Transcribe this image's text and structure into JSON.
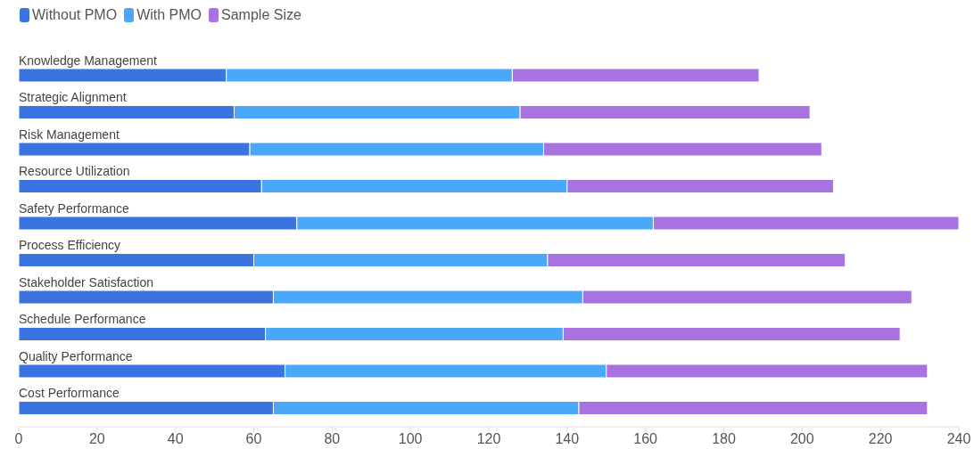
{
  "chart_data": {
    "type": "bar",
    "orientation": "horizontal",
    "stacked": true,
    "categories": [
      "Knowledge Management",
      "Strategic Alignment",
      "Risk Management",
      "Resource Utilization",
      "Safety Performance",
      "Process Efficiency",
      "Stakeholder Satisfaction",
      "Schedule Performance",
      "Quality Performance",
      "Cost Performance"
    ],
    "series": [
      {
        "name": "Without PMO",
        "color": "#3b73e0",
        "values": [
          53,
          55,
          59,
          62,
          71,
          60,
          65,
          63,
          68,
          65
        ]
      },
      {
        "name": "With PMO",
        "color": "#4aa8fb",
        "values": [
          73,
          73,
          75,
          78,
          91,
          75,
          79,
          76,
          82,
          78
        ]
      },
      {
        "name": "Sample Size",
        "color": "#a872e0",
        "values": [
          63,
          74,
          71,
          68,
          78,
          76,
          84,
          86,
          82,
          89
        ]
      }
    ],
    "xlim": [
      0,
      240
    ],
    "xticks": [
      0,
      20,
      40,
      60,
      80,
      100,
      120,
      140,
      160,
      180,
      200,
      220,
      240
    ],
    "grid": false,
    "legend": "top left"
  }
}
